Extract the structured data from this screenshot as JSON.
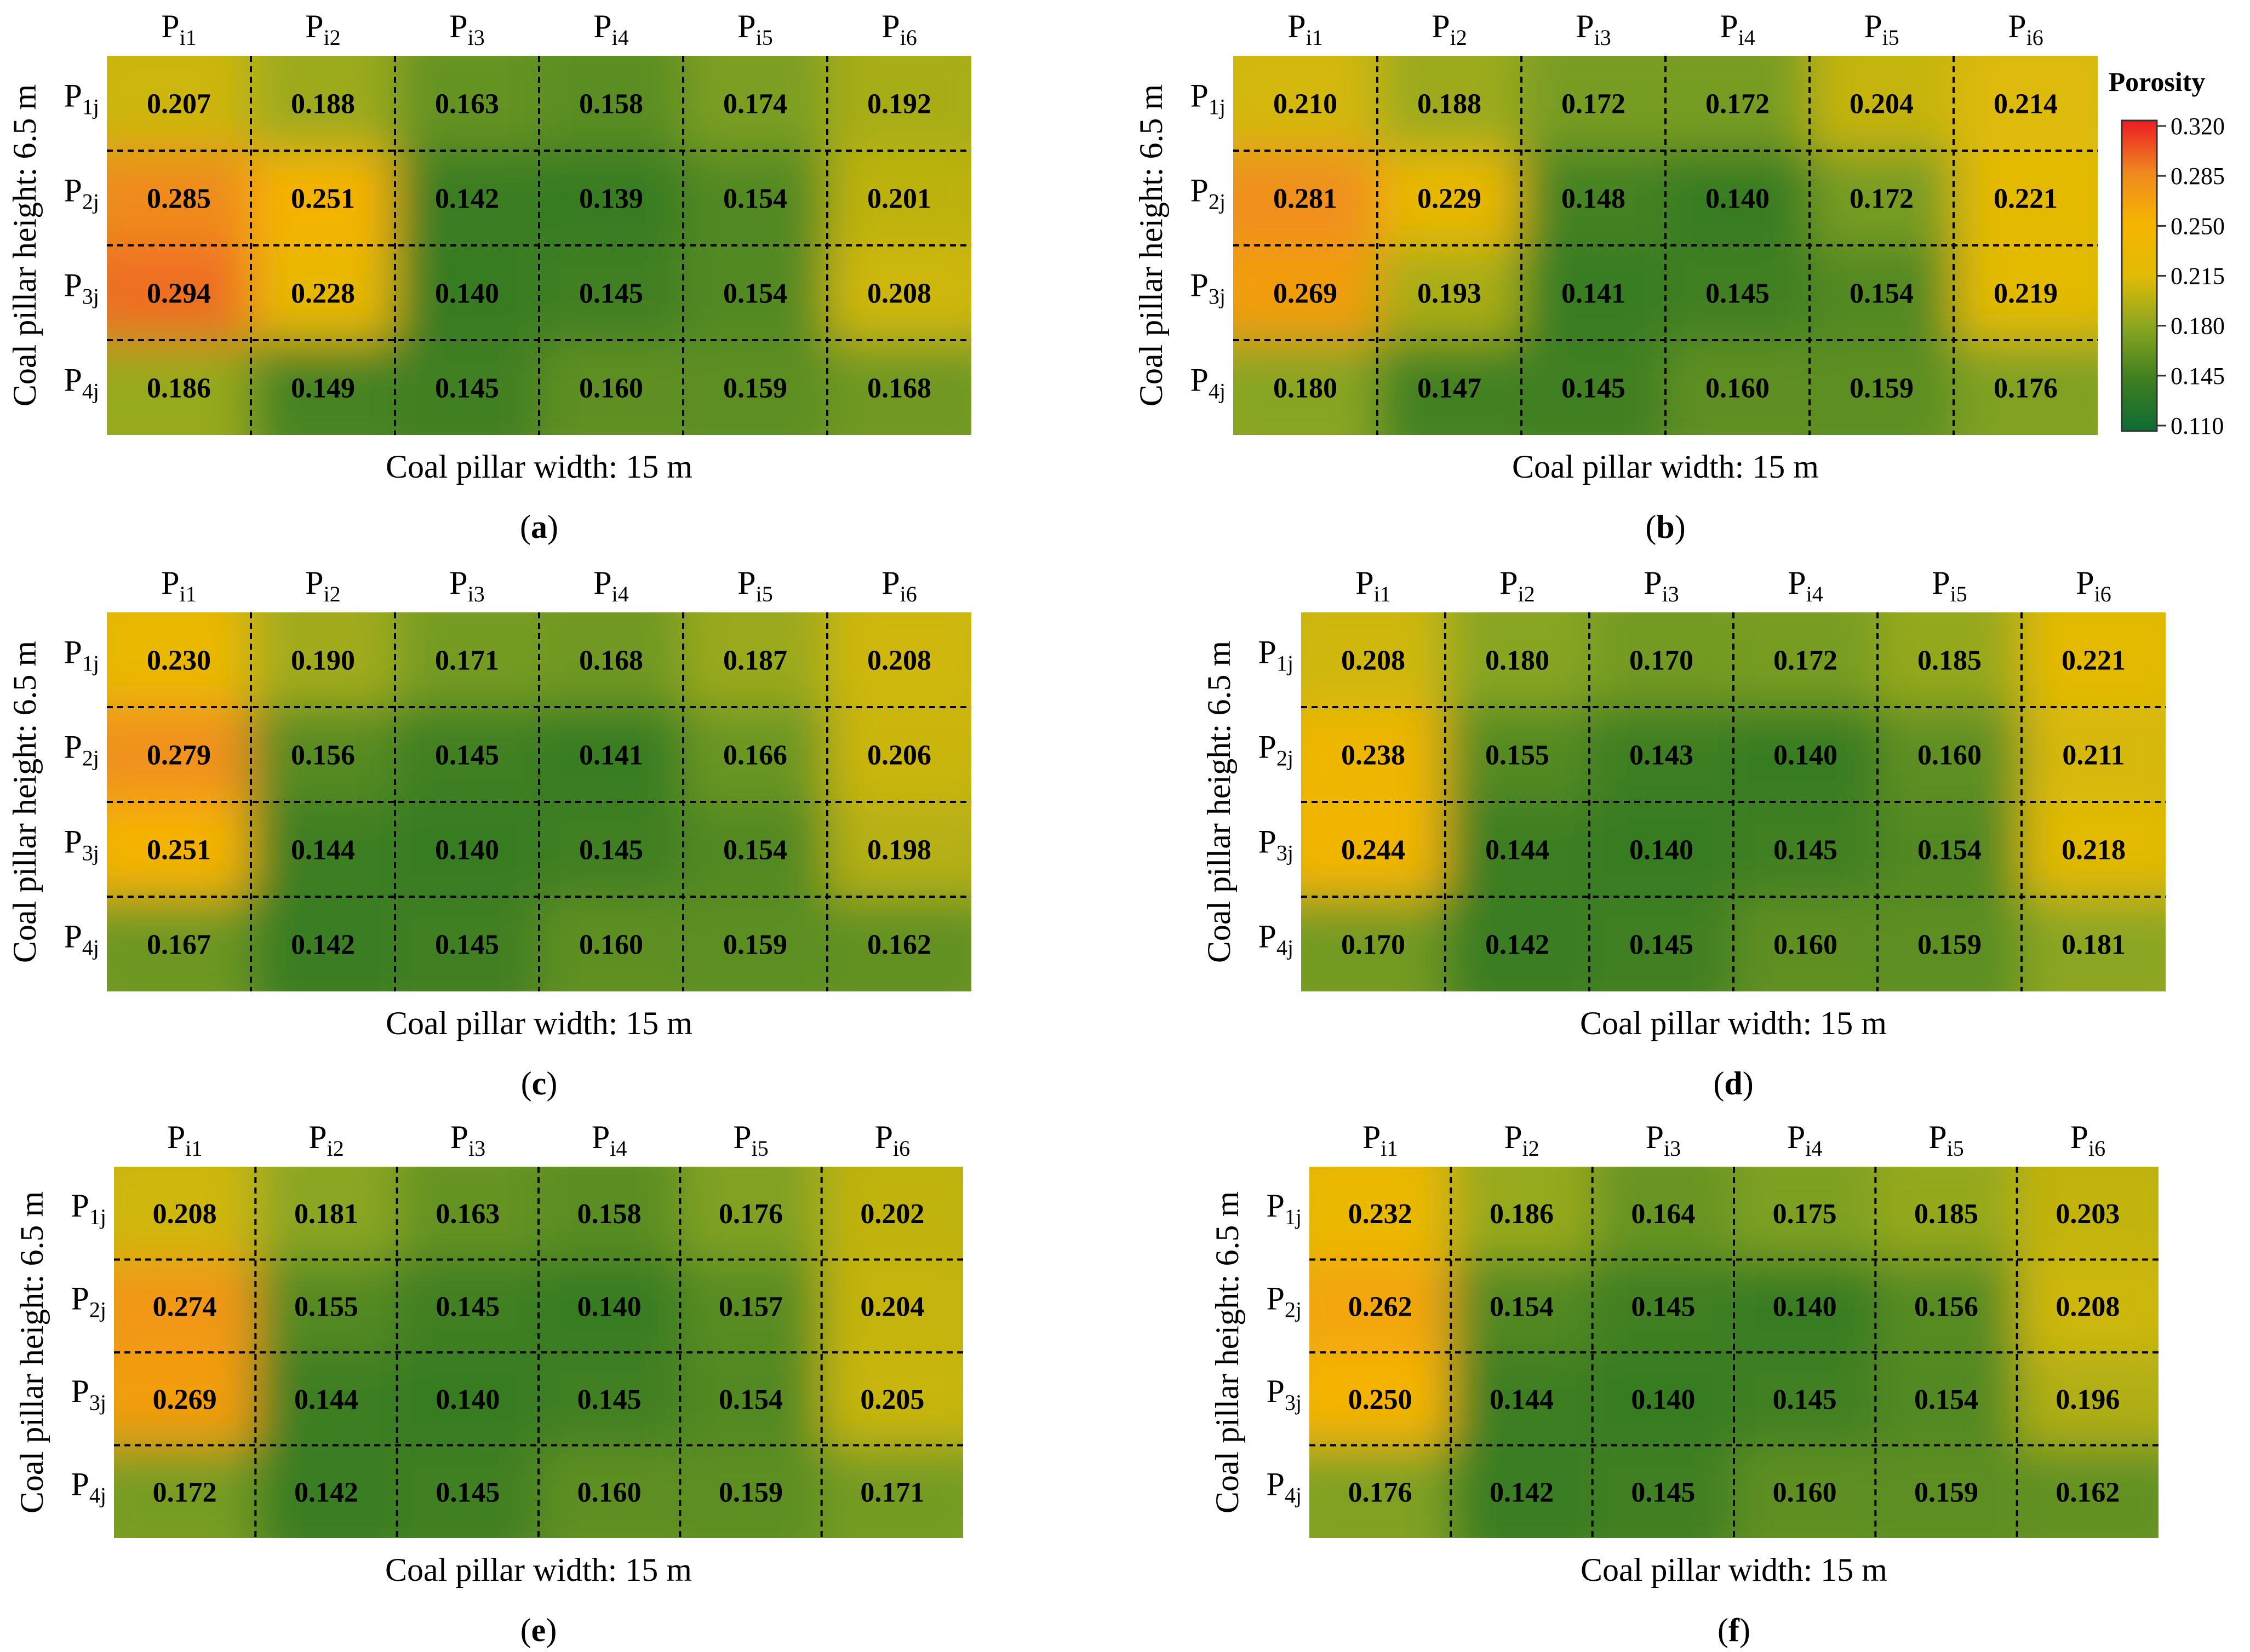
{
  "chart_data": {
    "type": "heatmap",
    "col_labels": [
      [
        "P",
        "i1"
      ],
      [
        "P",
        "i2"
      ],
      [
        "P",
        "i3"
      ],
      [
        "P",
        "i4"
      ],
      [
        "P",
        "i5"
      ],
      [
        "P",
        "i6"
      ]
    ],
    "row_labels": [
      [
        "P",
        "1j"
      ],
      [
        "P",
        "2j"
      ],
      [
        "P",
        "3j"
      ],
      [
        "P",
        "4j"
      ]
    ],
    "xlabel": "Coal pillar width: 15 m",
    "ylabel": "Coal pillar height: 6.5 m",
    "colorbar": {
      "title": "Porosity",
      "ticks": [
        "0.320",
        "0.285",
        "0.250",
        "0.215",
        "0.180",
        "0.145",
        "0.110"
      ],
      "range": [
        0.11,
        0.32
      ],
      "colors": [
        "#0e6b34",
        "#3f7f20",
        "#88a521",
        "#e1bb07",
        "#f5b400",
        "#f08a1f",
        "#ec1c24"
      ]
    },
    "panels": [
      {
        "letter": "a",
        "values": [
          [
            "0.207",
            "0.188",
            "0.163",
            "0.158",
            "0.174",
            "0.192"
          ],
          [
            "0.285",
            "0.251",
            "0.142",
            "0.139",
            "0.154",
            "0.201"
          ],
          [
            "0.294",
            "0.228",
            "0.140",
            "0.145",
            "0.154",
            "0.208"
          ],
          [
            "0.186",
            "0.149",
            "0.145",
            "0.160",
            "0.159",
            "0.168"
          ]
        ]
      },
      {
        "letter": "b",
        "values": [
          [
            "0.210",
            "0.188",
            "0.172",
            "0.172",
            "0.204",
            "0.214"
          ],
          [
            "0.281",
            "0.229",
            "0.148",
            "0.140",
            "0.172",
            "0.221"
          ],
          [
            "0.269",
            "0.193",
            "0.141",
            "0.145",
            "0.154",
            "0.219"
          ],
          [
            "0.180",
            "0.147",
            "0.145",
            "0.160",
            "0.159",
            "0.176"
          ]
        ]
      },
      {
        "letter": "c",
        "values": [
          [
            "0.230",
            "0.190",
            "0.171",
            "0.168",
            "0.187",
            "0.208"
          ],
          [
            "0.279",
            "0.156",
            "0.145",
            "0.141",
            "0.166",
            "0.206"
          ],
          [
            "0.251",
            "0.144",
            "0.140",
            "0.145",
            "0.154",
            "0.198"
          ],
          [
            "0.167",
            "0.142",
            "0.145",
            "0.160",
            "0.159",
            "0.162"
          ]
        ]
      },
      {
        "letter": "d",
        "values": [
          [
            "0.208",
            "0.180",
            "0.170",
            "0.172",
            "0.185",
            "0.221"
          ],
          [
            "0.238",
            "0.155",
            "0.143",
            "0.140",
            "0.160",
            "0.211"
          ],
          [
            "0.244",
            "0.144",
            "0.140",
            "0.145",
            "0.154",
            "0.218"
          ],
          [
            "0.170",
            "0.142",
            "0.145",
            "0.160",
            "0.159",
            "0.181"
          ]
        ]
      },
      {
        "letter": "e",
        "values": [
          [
            "0.208",
            "0.181",
            "0.163",
            "0.158",
            "0.176",
            "0.202"
          ],
          [
            "0.274",
            "0.155",
            "0.145",
            "0.140",
            "0.157",
            "0.204"
          ],
          [
            "0.269",
            "0.144",
            "0.140",
            "0.145",
            "0.154",
            "0.205"
          ],
          [
            "0.172",
            "0.142",
            "0.145",
            "0.160",
            "0.159",
            "0.171"
          ]
        ]
      },
      {
        "letter": "f",
        "values": [
          [
            "0.232",
            "0.186",
            "0.164",
            "0.175",
            "0.185",
            "0.203"
          ],
          [
            "0.262",
            "0.154",
            "0.145",
            "0.140",
            "0.156",
            "0.208"
          ],
          [
            "0.250",
            "0.144",
            "0.140",
            "0.145",
            "0.154",
            "0.196"
          ],
          [
            "0.176",
            "0.142",
            "0.145",
            "0.160",
            "0.159",
            "0.162"
          ]
        ]
      }
    ]
  }
}
